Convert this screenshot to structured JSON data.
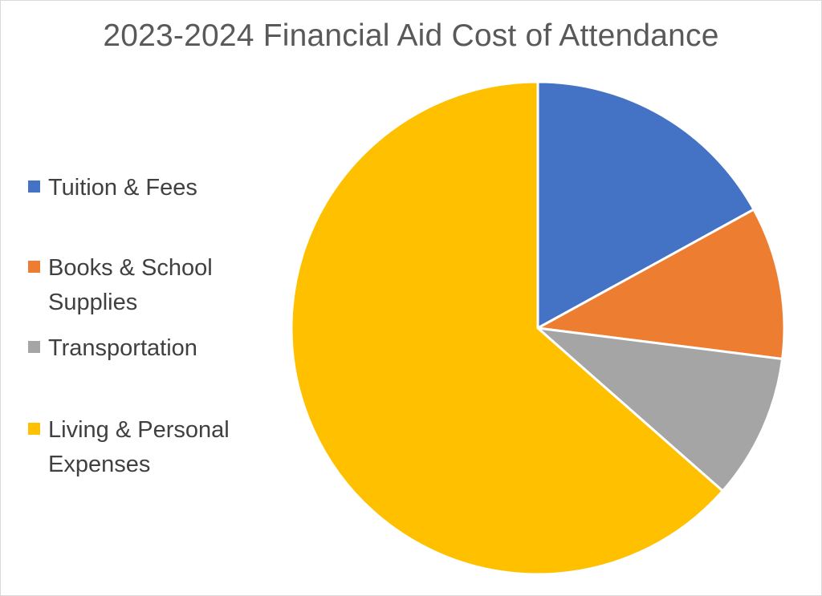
{
  "chart_data": {
    "type": "pie",
    "title": "2023-2024 Financial Aid Cost of Attendance",
    "categories": [
      "Tuition & Fees",
      "Books & School Supplies",
      "Transportation",
      "Living & Personal Expenses"
    ],
    "values": [
      17,
      10,
      9.5,
      63.5
    ],
    "colors": [
      "#4472C4",
      "#ED7D31",
      "#A5A5A5",
      "#FFC000"
    ],
    "legend_position": "left",
    "start_angle_deg": 0,
    "direction": "clockwise"
  },
  "legend": {
    "items": [
      {
        "label_line1": "Tuition & Fees",
        "label_line2": "",
        "color": "#4472C4"
      },
      {
        "label_line1": "Books & School",
        "label_line2": "Supplies",
        "color": "#ED7D31"
      },
      {
        "label_line1": "Transportation",
        "label_line2": "",
        "color": "#A5A5A5"
      },
      {
        "label_line1": "Living & Personal",
        "label_line2": "Expenses",
        "color": "#FFC000"
      }
    ]
  }
}
